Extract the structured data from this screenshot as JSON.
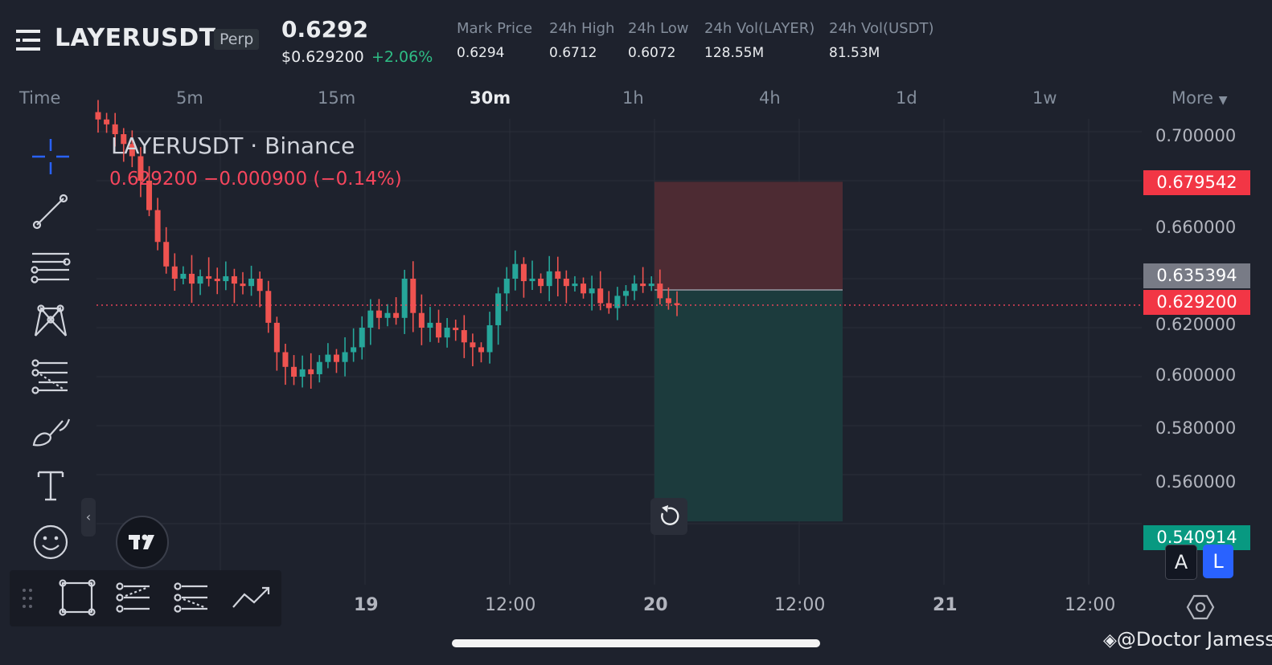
{
  "header": {
    "symbol": "LAYERUSDT",
    "contract_type": "Perp",
    "last_price": "0.6292",
    "usd_price": "$0.629200",
    "change_pct": "+2.06%",
    "stats": [
      {
        "label": "Mark Price",
        "value": "0.6294"
      },
      {
        "label": "24h High",
        "value": "0.6712"
      },
      {
        "label": "24h Low",
        "value": "0.6072"
      },
      {
        "label": "24h Vol(LAYER)",
        "value": "128.55M"
      },
      {
        "label": "24h Vol(USDT)",
        "value": "81.53M"
      }
    ]
  },
  "timeframes": {
    "time_label": "Time",
    "items": [
      "5m",
      "15m",
      "30m",
      "1h",
      "4h",
      "1d",
      "1w"
    ],
    "active": "30m",
    "more_label": "More"
  },
  "chart": {
    "title": "LAYERUSDT · Binance",
    "quote": "0.629200  −0.000900 (−0.14%)",
    "current_price_label": "0.629200",
    "stop_label": "0.679542",
    "entry_label": "0.635394",
    "target_label": "0.540914",
    "y_labels": [
      "0.700000",
      "0.660000",
      "0.620000",
      "0.600000",
      "0.580000",
      "0.560000"
    ],
    "x_labels": [
      "19",
      "12:00",
      "20",
      "12:00",
      "21",
      "12:00"
    ],
    "colors": {
      "up": "#26a69a",
      "down": "#ef5350",
      "stop_zone": "#4d2b33",
      "target_zone": "#1c3b3d"
    }
  },
  "chart_data": {
    "type": "candlestick",
    "title": "LAYERUSDT · Binance",
    "interval": "30m",
    "x_ticks": [
      "19",
      "12:00",
      "20",
      "12:00",
      "21",
      "12:00"
    ],
    "y_ticks": [
      0.7,
      0.66,
      0.62,
      0.6,
      0.58,
      0.56
    ],
    "ylim": [
      0.535,
      0.712
    ],
    "current_price": 0.6292,
    "short_position": {
      "entry": 0.635394,
      "stop": 0.679542,
      "target": 0.540914
    },
    "close_path": [
      0.705,
      0.703,
      0.699,
      0.695,
      0.69,
      0.68,
      0.668,
      0.655,
      0.645,
      0.64,
      0.642,
      0.638,
      0.641,
      0.64,
      0.639,
      0.641,
      0.638,
      0.637,
      0.64,
      0.635,
      0.622,
      0.61,
      0.604,
      0.6,
      0.603,
      0.601,
      0.606,
      0.609,
      0.606,
      0.61,
      0.612,
      0.62,
      0.627,
      0.624,
      0.626,
      0.624,
      0.64,
      0.626,
      0.62,
      0.622,
      0.616,
      0.62,
      0.619,
      0.614,
      0.612,
      0.61,
      0.621,
      0.634,
      0.64,
      0.646,
      0.639,
      0.64,
      0.637,
      0.643,
      0.64,
      0.637,
      0.638,
      0.634,
      0.636,
      0.63,
      0.628,
      0.633,
      0.635,
      0.638,
      0.637,
      0.638,
      0.632,
      0.63,
      0.6292
    ]
  },
  "tools": [
    "crosshair-tool",
    "trend-line-tool",
    "horizontal-lines-tool",
    "pattern-tool",
    "fib-tool",
    "brush-tool",
    "text-tool",
    "emoji-tool"
  ],
  "bottom_tools": [
    "rectangle-tool",
    "long-position-tool",
    "short-position-tool",
    "path-tool"
  ],
  "controls": {
    "auto_label": "A",
    "log_label": "L"
  },
  "watermark": "@Doctor Jamess"
}
